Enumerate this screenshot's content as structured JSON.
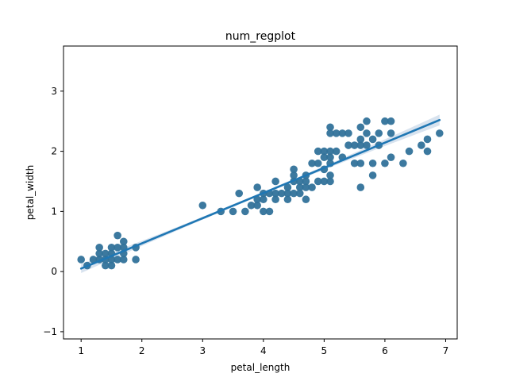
{
  "chart_data": {
    "type": "scatter",
    "title": "num_regplot",
    "xlabel": "petal_length",
    "ylabel": "petal_width",
    "xlim": [
      0.71,
      7.19
    ],
    "ylim": [
      -1.12,
      3.75
    ],
    "xticks": [
      1,
      2,
      3,
      4,
      5,
      6,
      7
    ],
    "yticks": [
      -1,
      0,
      1,
      2,
      3
    ],
    "grid": false,
    "colors": {
      "points": "#31729a",
      "line": "#1f77b4",
      "band": "#c7d7e8"
    },
    "regression": {
      "x": [
        1.0,
        6.9
      ],
      "y": [
        0.05,
        2.52
      ],
      "ci_halfwidth_start": 0.04,
      "ci_halfwidth_end": 0.07
    },
    "points": [
      [
        1.0,
        0.2
      ],
      [
        1.1,
        0.1
      ],
      [
        1.2,
        0.2
      ],
      [
        1.3,
        0.2
      ],
      [
        1.3,
        0.3
      ],
      [
        1.3,
        0.4
      ],
      [
        1.4,
        0.1
      ],
      [
        1.4,
        0.2
      ],
      [
        1.4,
        0.3
      ],
      [
        1.5,
        0.1
      ],
      [
        1.5,
        0.2
      ],
      [
        1.5,
        0.3
      ],
      [
        1.5,
        0.4
      ],
      [
        1.6,
        0.2
      ],
      [
        1.6,
        0.4
      ],
      [
        1.6,
        0.6
      ],
      [
        1.7,
        0.2
      ],
      [
        1.7,
        0.3
      ],
      [
        1.7,
        0.4
      ],
      [
        1.7,
        0.5
      ],
      [
        1.9,
        0.2
      ],
      [
        1.9,
        0.4
      ],
      [
        3.0,
        1.1
      ],
      [
        3.3,
        1.0
      ],
      [
        3.5,
        1.0
      ],
      [
        3.6,
        1.3
      ],
      [
        3.7,
        1.0
      ],
      [
        3.8,
        1.1
      ],
      [
        3.9,
        1.1
      ],
      [
        3.9,
        1.2
      ],
      [
        3.9,
        1.4
      ],
      [
        4.0,
        1.0
      ],
      [
        4.0,
        1.2
      ],
      [
        4.0,
        1.3
      ],
      [
        4.1,
        1.0
      ],
      [
        4.1,
        1.3
      ],
      [
        4.2,
        1.2
      ],
      [
        4.2,
        1.3
      ],
      [
        4.2,
        1.5
      ],
      [
        4.3,
        1.3
      ],
      [
        4.4,
        1.2
      ],
      [
        4.4,
        1.3
      ],
      [
        4.4,
        1.4
      ],
      [
        4.5,
        1.3
      ],
      [
        4.5,
        1.5
      ],
      [
        4.5,
        1.6
      ],
      [
        4.5,
        1.7
      ],
      [
        4.6,
        1.3
      ],
      [
        4.6,
        1.4
      ],
      [
        4.6,
        1.5
      ],
      [
        4.7,
        1.2
      ],
      [
        4.7,
        1.4
      ],
      [
        4.7,
        1.5
      ],
      [
        4.7,
        1.6
      ],
      [
        4.8,
        1.4
      ],
      [
        4.8,
        1.8
      ],
      [
        4.9,
        1.5
      ],
      [
        4.9,
        1.8
      ],
      [
        4.9,
        2.0
      ],
      [
        5.0,
        1.5
      ],
      [
        5.0,
        1.7
      ],
      [
        5.0,
        1.9
      ],
      [
        5.0,
        2.0
      ],
      [
        5.1,
        1.5
      ],
      [
        5.1,
        1.6
      ],
      [
        5.1,
        1.8
      ],
      [
        5.1,
        1.9
      ],
      [
        5.1,
        2.0
      ],
      [
        5.1,
        2.3
      ],
      [
        5.1,
        2.4
      ],
      [
        5.2,
        2.0
      ],
      [
        5.2,
        2.3
      ],
      [
        5.3,
        1.9
      ],
      [
        5.3,
        2.3
      ],
      [
        5.4,
        2.1
      ],
      [
        5.4,
        2.3
      ],
      [
        5.5,
        1.8
      ],
      [
        5.5,
        2.1
      ],
      [
        5.6,
        1.4
      ],
      [
        5.6,
        1.8
      ],
      [
        5.6,
        2.1
      ],
      [
        5.6,
        2.2
      ],
      [
        5.6,
        2.4
      ],
      [
        5.7,
        2.1
      ],
      [
        5.7,
        2.3
      ],
      [
        5.7,
        2.5
      ],
      [
        5.8,
        1.6
      ],
      [
        5.8,
        1.8
      ],
      [
        5.8,
        2.2
      ],
      [
        5.9,
        2.1
      ],
      [
        5.9,
        2.3
      ],
      [
        6.0,
        1.8
      ],
      [
        6.0,
        2.5
      ],
      [
        6.1,
        1.9
      ],
      [
        6.1,
        2.3
      ],
      [
        6.1,
        2.5
      ],
      [
        6.3,
        1.8
      ],
      [
        6.4,
        2.0
      ],
      [
        6.6,
        2.1
      ],
      [
        6.7,
        2.0
      ],
      [
        6.7,
        2.2
      ],
      [
        6.9,
        2.3
      ]
    ]
  }
}
